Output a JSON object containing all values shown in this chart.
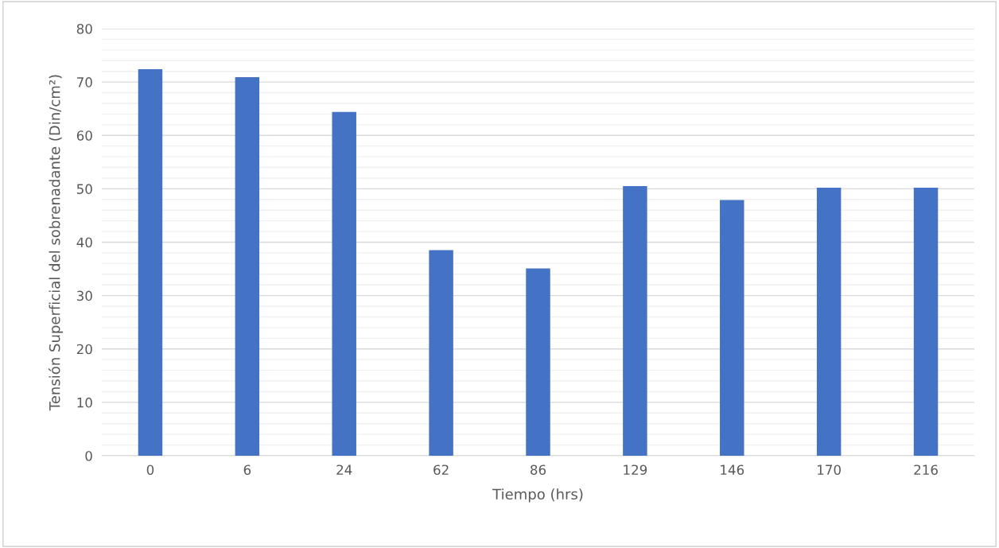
{
  "chart_data": {
    "type": "bar",
    "xlabel": "Tiempo (hrs)",
    "ylabel": "Tensión Superficial del sobrenadante (Din/cm²)",
    "categories": [
      "0",
      "6",
      "24",
      "62",
      "86",
      "129",
      "146",
      "170",
      "216"
    ],
    "values": [
      72.4,
      70.9,
      64.4,
      38.5,
      35.1,
      50.5,
      47.9,
      50.2,
      50.2
    ],
    "color": "#4472c4",
    "ylim": [
      0,
      80
    ],
    "yticks": [
      0,
      {
        "value": 2,
        "label": null
      },
      {
        "value": 4,
        "label": null
      },
      {
        "value": 6,
        "label": null
      },
      {
        "value": 8,
        "label": null
      },
      10,
      {
        "value": 12,
        "label": null
      },
      {
        "value": 14,
        "label": null
      },
      {
        "value": 16,
        "label": null
      },
      {
        "value": 18,
        "label": null
      },
      20,
      {
        "value": 22,
        "label": null
      },
      {
        "value": 24,
        "label": null
      },
      {
        "value": 26,
        "label": null
      },
      {
        "value": 28,
        "label": null
      },
      30,
      {
        "value": 32,
        "label": null
      },
      {
        "value": 34,
        "label": null
      },
      {
        "value": 36,
        "label": null
      },
      {
        "value": 38,
        "label": null
      },
      40,
      {
        "value": 42,
        "label": null
      },
      {
        "value": 44,
        "label": null
      },
      {
        "value": 46,
        "label": null
      },
      {
        "value": 48,
        "label": null
      },
      50,
      {
        "value": 52,
        "label": null
      },
      {
        "value": 54,
        "label": null
      },
      {
        "value": 56,
        "label": null
      },
      {
        "value": 58,
        "label": null
      },
      60,
      {
        "value": 62,
        "label": null
      },
      {
        "value": 64,
        "label": null
      },
      {
        "value": 66,
        "label": null
      },
      {
        "value": 68,
        "label": null
      },
      70,
      {
        "value": 72,
        "label": null
      },
      {
        "value": 74,
        "label": null
      },
      {
        "value": 76,
        "label": null
      },
      {
        "value": 78,
        "label": null
      },
      80
    ],
    "grid": "y",
    "legend": false
  }
}
